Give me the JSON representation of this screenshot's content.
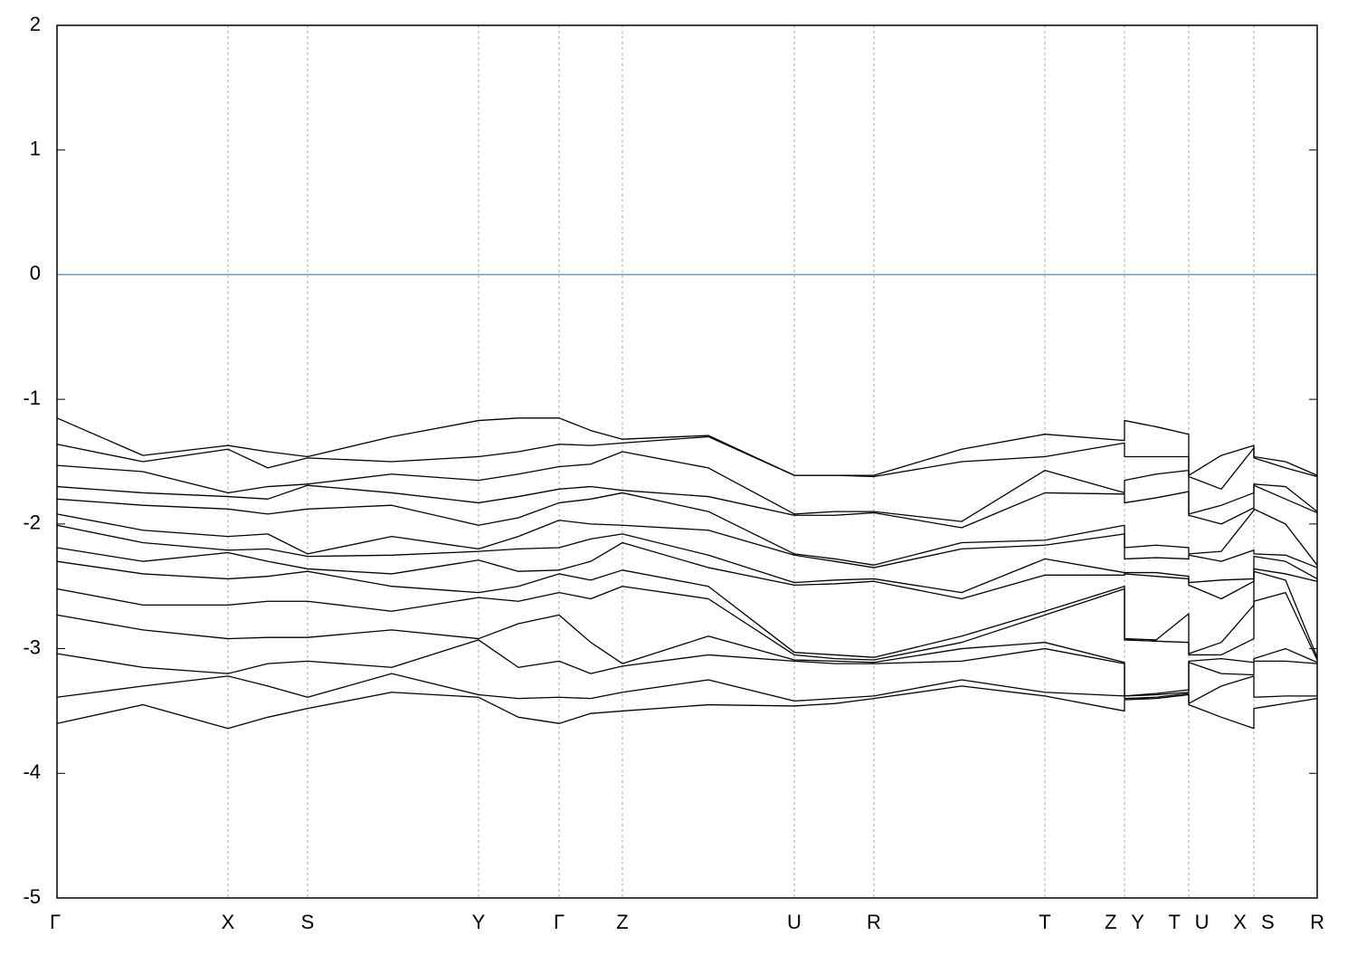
{
  "chart_data": {
    "type": "line",
    "x": [
      0,
      0.95,
      1.89,
      2.33,
      2.77,
      3.7,
      4.66,
      5.1,
      5.55,
      5.9,
      6.25,
      7.2,
      8.15,
      8.6,
      9.03,
      10.0,
      10.92,
      11.8,
      11.8,
      12.15,
      12.51,
      12.51,
      12.87,
      13.23,
      13.23,
      13.58,
      13.93
    ],
    "xlim": [
      0,
      13.93
    ],
    "xticks": [
      {
        "value": 0,
        "label": "Γ"
      },
      {
        "value": 1.89,
        "label": "X"
      },
      {
        "value": 2.77,
        "label": "S"
      },
      {
        "value": 4.66,
        "label": "Y"
      },
      {
        "value": 5.55,
        "label": "Γ"
      },
      {
        "value": 6.25,
        "label": "Z"
      },
      {
        "value": 8.15,
        "label": "U"
      },
      {
        "value": 9.03,
        "label": "R"
      },
      {
        "value": 10.92,
        "label": "T"
      },
      {
        "value": 11.8,
        "label": "Z Y"
      },
      {
        "value": 12.51,
        "label": "T U"
      },
      {
        "value": 13.23,
        "label": "X S"
      },
      {
        "value": 13.93,
        "label": "R"
      }
    ],
    "ylim": [
      -5,
      2
    ],
    "yticks": [
      -5,
      -4,
      -3,
      -2,
      -1,
      0,
      1,
      2
    ],
    "grid": true,
    "hline": {
      "value": 0,
      "color": "#4aa8c4"
    },
    "series": [
      {
        "color": "#000000",
        "values": [
          -1.15,
          -1.45,
          -1.37,
          -1.42,
          -1.46,
          -1.3,
          -1.17,
          -1.15,
          -1.15,
          -1.25,
          -1.32,
          -1.29,
          -1.61,
          -1.61,
          -1.61,
          -1.4,
          -1.28,
          -1.33,
          -1.17,
          -1.22,
          -1.28,
          -1.61,
          -1.45,
          -1.37,
          -1.46,
          -1.5,
          -1.61
        ]
      },
      {
        "color": "#000000",
        "values": [
          -1.36,
          -1.5,
          -1.4,
          -1.55,
          -1.47,
          -1.5,
          -1.46,
          -1.42,
          -1.36,
          -1.37,
          -1.35,
          -1.3,
          -1.61,
          -1.61,
          -1.62,
          -1.5,
          -1.46,
          -1.35,
          -1.46,
          -1.46,
          -1.46,
          -1.62,
          -1.72,
          -1.39,
          -1.47,
          -1.55,
          -1.62
        ]
      },
      {
        "color": "#000000",
        "values": [
          -1.53,
          -1.58,
          -1.75,
          -1.7,
          -1.68,
          -1.6,
          -1.65,
          -1.6,
          -1.54,
          -1.52,
          -1.42,
          -1.55,
          -1.92,
          -1.9,
          -1.9,
          -1.98,
          -1.57,
          -1.75,
          -1.65,
          -1.6,
          -1.57,
          -1.92,
          -1.85,
          -1.75,
          -1.68,
          -1.7,
          -1.9
        ]
      },
      {
        "color": "#000000",
        "values": [
          -1.7,
          -1.75,
          -1.78,
          -1.8,
          -1.69,
          -1.75,
          -1.83,
          -1.78,
          -1.72,
          -1.7,
          -1.73,
          -1.78,
          -1.93,
          -1.93,
          -1.91,
          -2.03,
          -1.75,
          -1.76,
          -1.83,
          -1.79,
          -1.74,
          -1.93,
          -2.0,
          -1.87,
          -1.69,
          -1.8,
          -1.91
        ]
      },
      {
        "color": "#000000",
        "values": [
          -1.8,
          -1.85,
          -1.88,
          -1.92,
          -1.88,
          -1.85,
          -2.01,
          -1.95,
          -1.83,
          -1.8,
          -1.75,
          -1.9,
          -2.24,
          -2.28,
          -2.33,
          -2.15,
          -2.13,
          -2.01,
          -2.19,
          -2.17,
          -2.19,
          -2.24,
          -2.22,
          -1.89,
          -1.88,
          -2.0,
          -2.33
        ]
      },
      {
        "color": "#000000",
        "values": [
          -1.92,
          -2.05,
          -2.1,
          -2.08,
          -2.24,
          -2.1,
          -2.2,
          -2.1,
          -1.97,
          -2.0,
          -2.01,
          -2.05,
          -2.25,
          -2.3,
          -2.35,
          -2.2,
          -2.17,
          -2.08,
          -2.28,
          -2.27,
          -2.28,
          -2.25,
          -2.3,
          -2.21,
          -2.24,
          -2.25,
          -2.35
        ]
      },
      {
        "color": "#000000",
        "values": [
          -2.01,
          -2.15,
          -2.21,
          -2.2,
          -2.26,
          -2.25,
          -2.22,
          -2.2,
          -2.19,
          -2.12,
          -2.08,
          -2.25,
          -2.47,
          -2.45,
          -2.44,
          -2.55,
          -2.28,
          -2.39,
          -2.39,
          -2.39,
          -2.42,
          -2.47,
          -2.45,
          -2.44,
          -2.26,
          -2.3,
          -2.44
        ]
      },
      {
        "color": "#000000",
        "values": [
          -2.19,
          -2.3,
          -2.23,
          -2.3,
          -2.36,
          -2.4,
          -2.29,
          -2.38,
          -2.37,
          -2.3,
          -2.15,
          -2.35,
          -2.49,
          -2.48,
          -2.46,
          -2.6,
          -2.41,
          -2.41,
          -2.4,
          -2.42,
          -2.44,
          -2.49,
          -2.6,
          -2.46,
          -2.36,
          -2.4,
          -2.46
        ]
      },
      {
        "color": "#000000",
        "values": [
          -2.3,
          -2.4,
          -2.44,
          -2.42,
          -2.38,
          -2.5,
          -2.55,
          -2.5,
          -2.4,
          -2.45,
          -2.37,
          -2.5,
          -3.03,
          -3.05,
          -3.07,
          -2.9,
          -2.7,
          -2.5,
          -2.92,
          -2.93,
          -2.72,
          -3.04,
          -2.95,
          -2.65,
          -2.38,
          -2.45,
          -3.07
        ]
      },
      {
        "color": "#000000",
        "values": [
          -2.52,
          -2.65,
          -2.65,
          -2.62,
          -2.62,
          -2.7,
          -2.59,
          -2.62,
          -2.55,
          -2.6,
          -2.5,
          -2.6,
          -3.05,
          -3.08,
          -3.09,
          -2.95,
          -2.73,
          -2.52,
          -2.93,
          -2.94,
          -2.95,
          -3.05,
          -3.05,
          -2.92,
          -2.62,
          -2.55,
          -3.09
        ]
      },
      {
        "color": "#000000",
        "values": [
          -2.73,
          -2.85,
          -2.92,
          -2.91,
          -2.91,
          -2.85,
          -2.92,
          -2.8,
          -2.73,
          -2.95,
          -3.12,
          -2.9,
          -3.09,
          -3.1,
          -3.11,
          -3.0,
          -2.95,
          -3.11,
          -3.38,
          -3.36,
          -3.33,
          -3.1,
          -3.08,
          -3.11,
          -3.08,
          -3.0,
          -3.11
        ]
      },
      {
        "color": "#000000",
        "values": [
          -3.04,
          -3.15,
          -3.2,
          -3.12,
          -3.1,
          -3.15,
          -2.93,
          -3.15,
          -3.1,
          -3.2,
          -3.14,
          -3.05,
          -3.1,
          -3.12,
          -3.12,
          -3.1,
          -3.0,
          -3.12,
          -3.38,
          -3.37,
          -3.35,
          -3.11,
          -3.2,
          -3.21,
          -3.1,
          -3.1,
          -3.12
        ]
      },
      {
        "color": "#000000",
        "values": [
          -3.39,
          -3.3,
          -3.22,
          -3.3,
          -3.39,
          -3.2,
          -3.37,
          -3.4,
          -3.39,
          -3.4,
          -3.35,
          -3.25,
          -3.42,
          -3.4,
          -3.38,
          -3.25,
          -3.35,
          -3.38,
          -3.4,
          -3.39,
          -3.36,
          -3.44,
          -3.3,
          -3.22,
          -3.39,
          -3.38,
          -3.38
        ]
      },
      {
        "color": "#000000",
        "values": [
          -3.6,
          -3.45,
          -3.64,
          -3.55,
          -3.48,
          -3.35,
          -3.39,
          -3.55,
          -3.6,
          -3.52,
          -3.5,
          -3.45,
          -3.46,
          -3.44,
          -3.4,
          -3.3,
          -3.38,
          -3.5,
          -3.41,
          -3.4,
          -3.37,
          -3.45,
          -3.55,
          -3.64,
          -3.48,
          -3.44,
          -3.4
        ]
      }
    ]
  }
}
